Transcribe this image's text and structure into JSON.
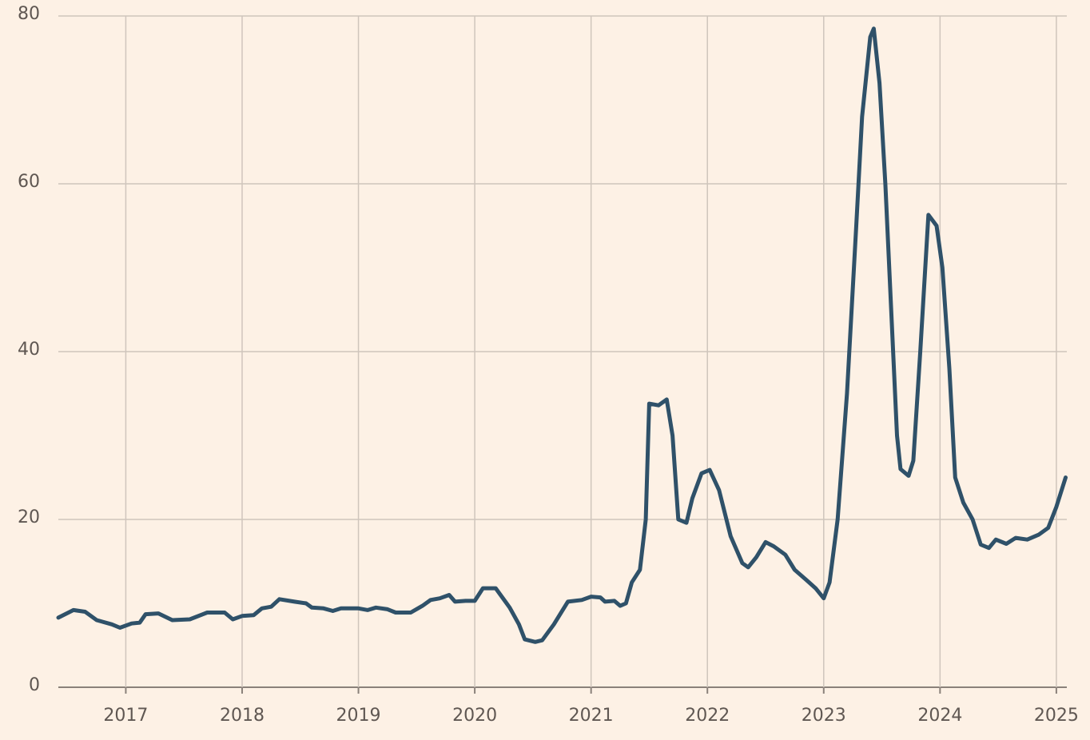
{
  "chart_data": {
    "type": "line",
    "x": [
      2016.42,
      2016.55,
      2016.65,
      2016.75,
      2016.88,
      2016.95,
      2017.05,
      2017.12,
      2017.17,
      2017.28,
      2017.4,
      2017.55,
      2017.7,
      2017.85,
      2017.92,
      2018.0,
      2018.1,
      2018.17,
      2018.25,
      2018.32,
      2018.45,
      2018.55,
      2018.6,
      2018.7,
      2018.78,
      2018.85,
      2019.0,
      2019.08,
      2019.15,
      2019.25,
      2019.32,
      2019.45,
      2019.55,
      2019.62,
      2019.7,
      2019.78,
      2019.83,
      2019.92,
      2020.0,
      2020.07,
      2020.18,
      2020.3,
      2020.38,
      2020.43,
      2020.52,
      2020.58,
      2020.68,
      2020.8,
      2020.92,
      2021.0,
      2021.08,
      2021.12,
      2021.2,
      2021.25,
      2021.3,
      2021.35,
      2021.42,
      2021.47,
      2021.5,
      2021.58,
      2021.65,
      2021.7,
      2021.75,
      2021.82,
      2021.87,
      2021.95,
      2022.02,
      2022.1,
      2022.2,
      2022.3,
      2022.35,
      2022.42,
      2022.5,
      2022.57,
      2022.67,
      2022.75,
      2022.85,
      2022.93,
      2023.0,
      2023.05,
      2023.12,
      2023.2,
      2023.28,
      2023.33,
      2023.4,
      2023.43,
      2023.48,
      2023.53,
      2023.58,
      2023.63,
      2023.66,
      2023.73,
      2023.77,
      2023.83,
      2023.9,
      2023.97,
      2024.02,
      2024.08,
      2024.13,
      2024.2,
      2024.28,
      2024.35,
      2024.42,
      2024.48,
      2024.57,
      2024.65,
      2024.75,
      2024.85,
      2024.93,
      2025.0,
      2025.08
    ],
    "series": [
      {
        "color": "#2f5169",
        "values": [
          8.3,
          9.2,
          9.0,
          8.0,
          7.5,
          7.1,
          7.6,
          7.7,
          8.7,
          8.8,
          8.0,
          8.1,
          8.9,
          8.9,
          8.1,
          8.5,
          8.6,
          9.4,
          9.6,
          10.5,
          10.2,
          10.0,
          9.5,
          9.4,
          9.1,
          9.4,
          9.4,
          9.2,
          9.5,
          9.3,
          8.9,
          8.9,
          9.7,
          10.4,
          10.6,
          11.0,
          10.2,
          10.3,
          10.3,
          11.8,
          11.8,
          9.5,
          7.5,
          5.7,
          5.4,
          5.6,
          7.5,
          10.2,
          10.4,
          10.8,
          10.7,
          10.2,
          10.3,
          9.7,
          10.0,
          12.5,
          14.0,
          20,
          33.8,
          33.6,
          34.3,
          30,
          20,
          19.6,
          22.5,
          25.5,
          25.9,
          23.5,
          18.0,
          14.8,
          14.3,
          15.5,
          17.3,
          16.8,
          15.8,
          14.0,
          12.8,
          11.8,
          10.6,
          12.5,
          20,
          35,
          55,
          68,
          77.5,
          78.5,
          72,
          60,
          45,
          30,
          26,
          25.2,
          27,
          40,
          56.3,
          55,
          50,
          38,
          25,
          22,
          20,
          17.0,
          16.6,
          17.6,
          17.1,
          17.8,
          17.6,
          18.2,
          19.0,
          21.5,
          25.0
        ]
      }
    ],
    "xlim": [
      2016.42,
      2025.09
    ],
    "xticks": [
      2017,
      2018,
      2019,
      2020,
      2021,
      2022,
      2023,
      2024,
      2025
    ],
    "ylim": [
      0,
      80
    ],
    "yticks": [
      0,
      20,
      40,
      60,
      80
    ],
    "grid": true
  }
}
